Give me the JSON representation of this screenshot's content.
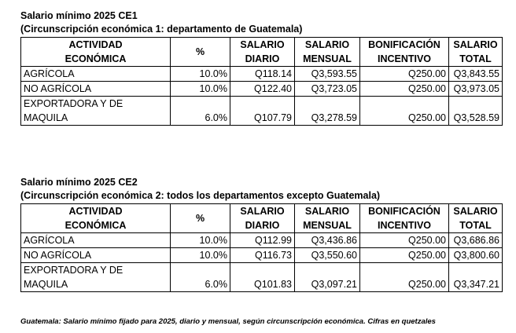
{
  "tables": [
    {
      "title": "Salario mínimo 2025 CE1",
      "subtitle": "(Circunscripción económica 1: departamento de Guatemala)",
      "headers": [
        [
          "ACTIVIDAD",
          "ECONÓMICA"
        ],
        [
          "%"
        ],
        [
          "SALARIO",
          "DIARIO"
        ],
        [
          "SALARIO",
          "MENSUAL"
        ],
        [
          "BONIFICACIÓN",
          "INCENTIVO"
        ],
        [
          "SALARIO",
          "TOTAL"
        ]
      ],
      "rows": [
        [
          "AGRÍCOLA",
          "10.0%",
          "Q118.14",
          "Q3,593.55",
          "Q250.00",
          "Q3,843.55"
        ],
        [
          "NO AGRÍCOLA",
          "10.0%",
          "Q122.40",
          "Q3,723.05",
          "Q250.00",
          "Q3,973.05"
        ],
        [
          "EXPORTADORA Y DE MAQUILA",
          "6.0%",
          "Q107.79",
          "Q3,278.59",
          "Q250.00",
          "Q3,528.59"
        ]
      ]
    },
    {
      "title": "Salario mínimo 2025 CE2",
      "subtitle": "(Circunscripción económica 2: todos los departamentos excepto Guatemala)",
      "headers": [
        [
          "ACTIVIDAD",
          "ECONÓMICA"
        ],
        [
          "%"
        ],
        [
          "SALARIO",
          "DIARIO"
        ],
        [
          "SALARIO",
          "MENSUAL"
        ],
        [
          "BONIFICACIÓN",
          "INCENTIVO"
        ],
        [
          "SALARIO",
          "TOTAL"
        ]
      ],
      "rows": [
        [
          "AGRÍCOLA",
          "10.0%",
          "Q112.99",
          "Q3,436.86",
          "Q250.00",
          "Q3,686.86"
        ],
        [
          "NO AGRÍCOLA",
          "10.0%",
          "Q116.73",
          "Q3,550.60",
          "Q250.00",
          "Q3,800.60"
        ],
        [
          "EXPORTADORA Y DE MAQUILA",
          "6.0%",
          "Q101.83",
          "Q3,097.21",
          "Q250.00",
          "Q3,347.21"
        ]
      ]
    }
  ],
  "footnote": "Guatemala: Salario mínimo fijado para 2025, diario y mensual, según circunscripción económica. Cifras en quetzales"
}
